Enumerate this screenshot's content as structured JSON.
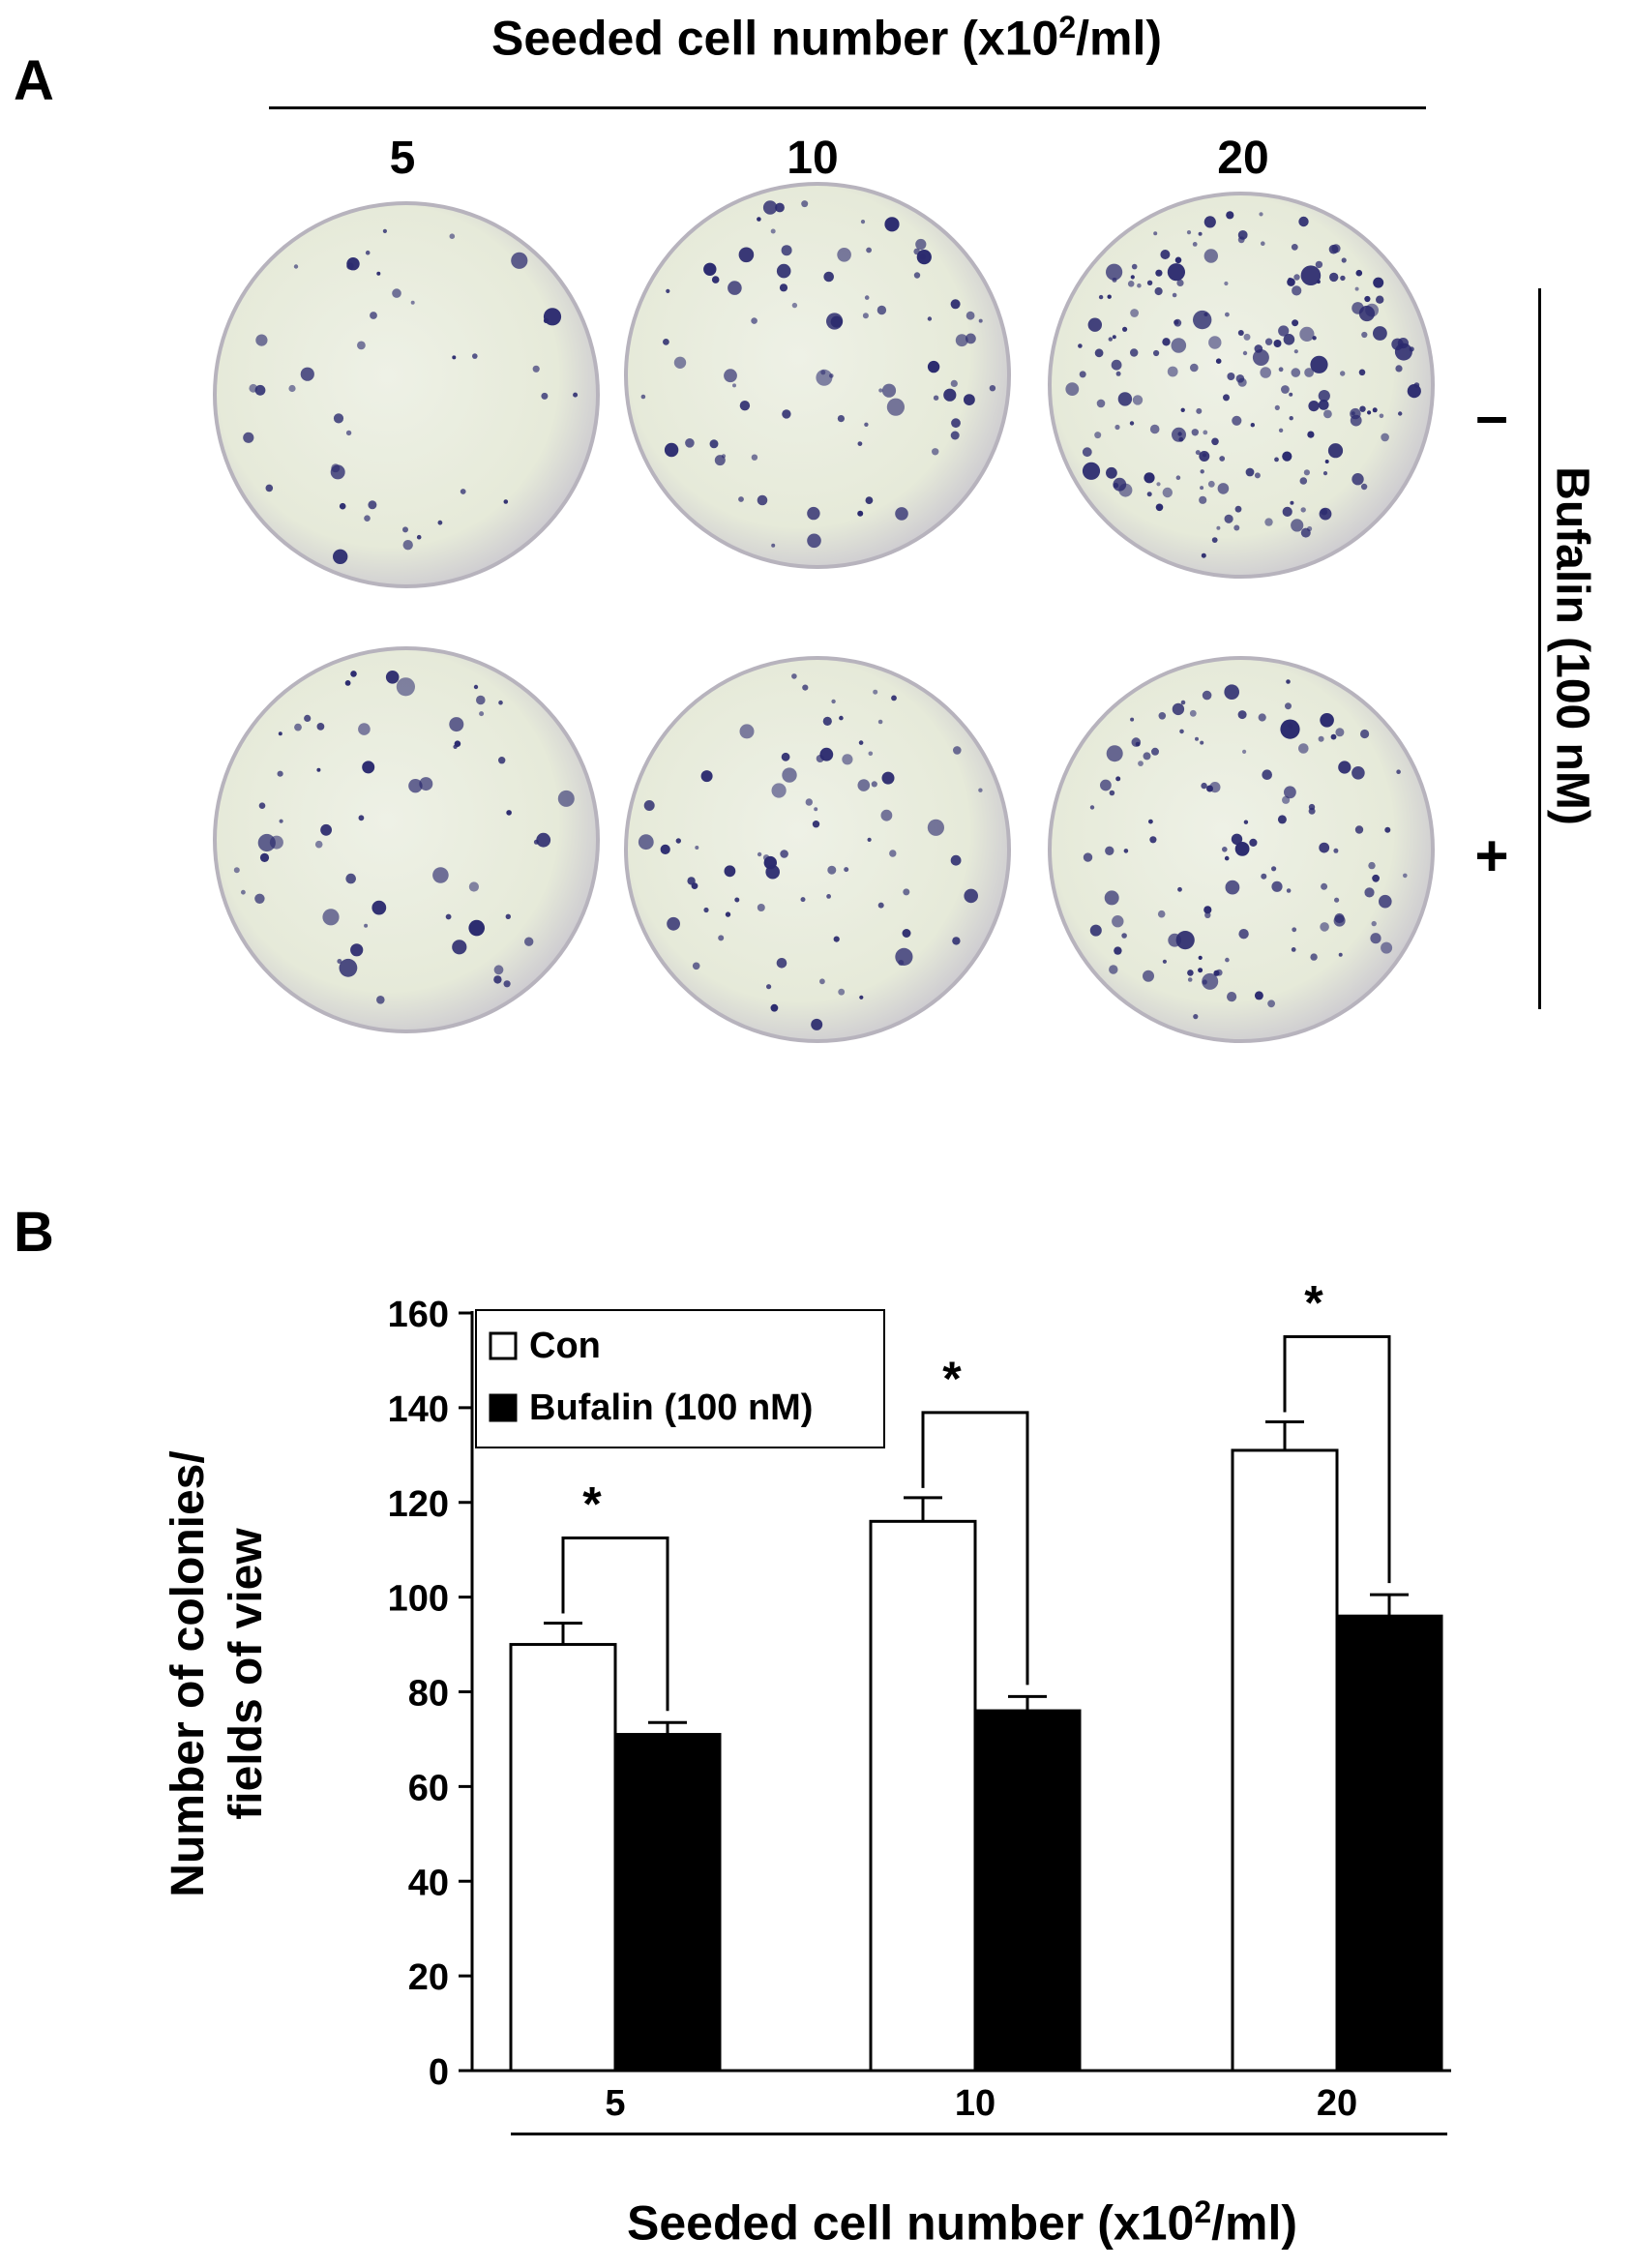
{
  "panel_a": {
    "letter": "A",
    "header_prefix": "Seeded cell number (x10",
    "header_sup": "2",
    "header_suffix": "/ml)",
    "columns": [
      "5",
      "10",
      "20"
    ],
    "rows": [
      "–",
      "+"
    ],
    "side_label": "Bufalin (100 nM)",
    "plate_tint": "#e6ead9",
    "colony_color": "#2b2a6e"
  },
  "panel_b": {
    "letter": "B",
    "xaxis_prefix": "Seeded cell number (x10",
    "xaxis_sup": "2",
    "xaxis_suffix": "/ml)"
  },
  "chart_data": {
    "type": "bar",
    "categories": [
      "5",
      "10",
      "20"
    ],
    "series": [
      {
        "name": "Con",
        "values": [
          90,
          116,
          131
        ],
        "errors": [
          4.5,
          5,
          6
        ],
        "color": "#ffffff"
      },
      {
        "name": "Bufalin (100 nM)",
        "values": [
          71,
          76,
          96
        ],
        "errors": [
          2.5,
          3,
          4.5
        ],
        "color": "#000000"
      }
    ],
    "ylabel_line1": "Number of colonies/",
    "ylabel_line2": "fields of view",
    "ylim": [
      0,
      160
    ],
    "yticks": [
      "0",
      "20",
      "40",
      "60",
      "80",
      "100",
      "120",
      "140",
      "160"
    ],
    "significance": [
      "*",
      "*",
      "*"
    ],
    "legend_position": "top-left",
    "grid": false
  }
}
